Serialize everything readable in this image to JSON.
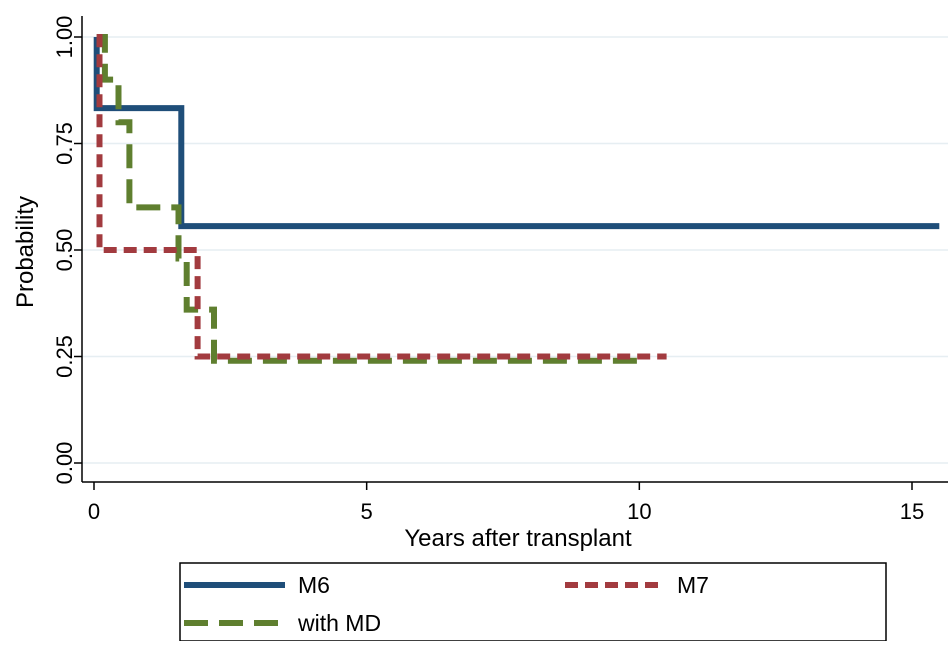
{
  "chart_data": {
    "type": "line",
    "title": "",
    "xlabel": "Years after transplant",
    "ylabel": "Probability",
    "xlim": [
      -0.2,
      15.5
    ],
    "ylim": [
      -0.03,
      1.05
    ],
    "x_ticks": [
      0,
      5,
      10,
      15
    ],
    "x_tick_labels": [
      "0",
      "5",
      "10",
      "15"
    ],
    "y_ticks": [
      0,
      0.25,
      0.5,
      0.75,
      1.0
    ],
    "y_tick_labels": [
      "0.00",
      "0.25",
      "0.50",
      "0.75",
      "1.00"
    ],
    "grid": "horizontal",
    "legend_position": "bottom",
    "series": [
      {
        "name": "M6",
        "color": "#1f4e79",
        "style": "solid",
        "points": [
          [
            0.05,
            1.0
          ],
          [
            0.05,
            0.833
          ],
          [
            1.6,
            0.833
          ],
          [
            1.6,
            0.556
          ],
          [
            15.5,
            0.556
          ]
        ]
      },
      {
        "name": "M7",
        "color": "#a23b3f",
        "style": "dashed",
        "points": [
          [
            0.05,
            1.0
          ],
          [
            0.1,
            1.0
          ],
          [
            0.1,
            0.5
          ],
          [
            1.9,
            0.5
          ],
          [
            1.9,
            0.25
          ],
          [
            10.5,
            0.25
          ]
        ]
      },
      {
        "name": "with MD",
        "color": "#5f7f2f",
        "style": "longdash",
        "points": [
          [
            0.05,
            1.0
          ],
          [
            0.2,
            1.0
          ],
          [
            0.2,
            0.9
          ],
          [
            0.45,
            0.9
          ],
          [
            0.45,
            0.8
          ],
          [
            0.65,
            0.8
          ],
          [
            0.65,
            0.6
          ],
          [
            1.55,
            0.6
          ],
          [
            1.55,
            0.48
          ],
          [
            1.7,
            0.48
          ],
          [
            1.7,
            0.36
          ],
          [
            2.2,
            0.36
          ],
          [
            2.2,
            0.24
          ],
          [
            10.0,
            0.24
          ]
        ]
      }
    ]
  }
}
